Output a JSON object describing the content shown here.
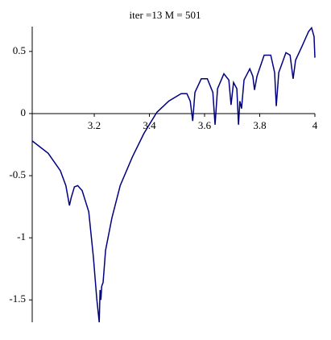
{
  "chart_data": {
    "type": "line",
    "title": "iter =13   M = 501",
    "x": [
      2.975,
      3.033,
      3.077,
      3.097,
      3.11,
      3.116,
      3.128,
      3.14,
      3.156,
      3.18,
      3.197,
      3.209,
      3.218,
      3.221,
      3.224,
      3.227,
      3.232,
      3.241,
      3.264,
      3.294,
      3.338,
      3.38,
      3.427,
      3.47,
      3.515,
      3.536,
      3.548,
      3.557,
      3.565,
      3.588,
      3.61,
      3.63,
      3.638,
      3.647,
      3.67,
      3.688,
      3.696,
      3.705,
      3.717,
      3.723,
      3.728,
      3.734,
      3.743,
      3.764,
      3.775,
      3.781,
      3.79,
      3.816,
      3.84,
      3.854,
      3.86,
      3.869,
      3.895,
      3.91,
      3.921,
      3.93,
      3.953,
      3.977,
      3.988,
      3.997,
      4.0
    ],
    "series": [
      {
        "color": "#000080",
        "values": [
          -0.22,
          -0.32,
          -0.46,
          -0.58,
          -0.74,
          -0.68,
          -0.59,
          -0.58,
          -0.62,
          -0.79,
          -1.16,
          -1.49,
          -1.68,
          -1.42,
          -1.5,
          -1.39,
          -1.36,
          -1.1,
          -0.84,
          -0.58,
          -0.35,
          -0.16,
          0.01,
          0.1,
          0.16,
          0.16,
          0.1,
          -0.06,
          0.17,
          0.28,
          0.28,
          0.17,
          -0.09,
          0.2,
          0.32,
          0.27,
          0.07,
          0.25,
          0.2,
          -0.09,
          0.1,
          0.04,
          0.27,
          0.36,
          0.3,
          0.19,
          0.3,
          0.47,
          0.47,
          0.33,
          0.06,
          0.33,
          0.49,
          0.47,
          0.28,
          0.43,
          0.54,
          0.66,
          0.69,
          0.62,
          0.45
        ]
      }
    ],
    "xlim": [
      2.975,
      4
    ],
    "ylim": [
      -1.68,
      0.7
    ],
    "xticks": [
      3.2,
      3.4,
      3.6,
      3.8,
      4
    ],
    "yticks": [
      -1.5,
      -1,
      -0.5,
      0,
      0.5
    ]
  }
}
